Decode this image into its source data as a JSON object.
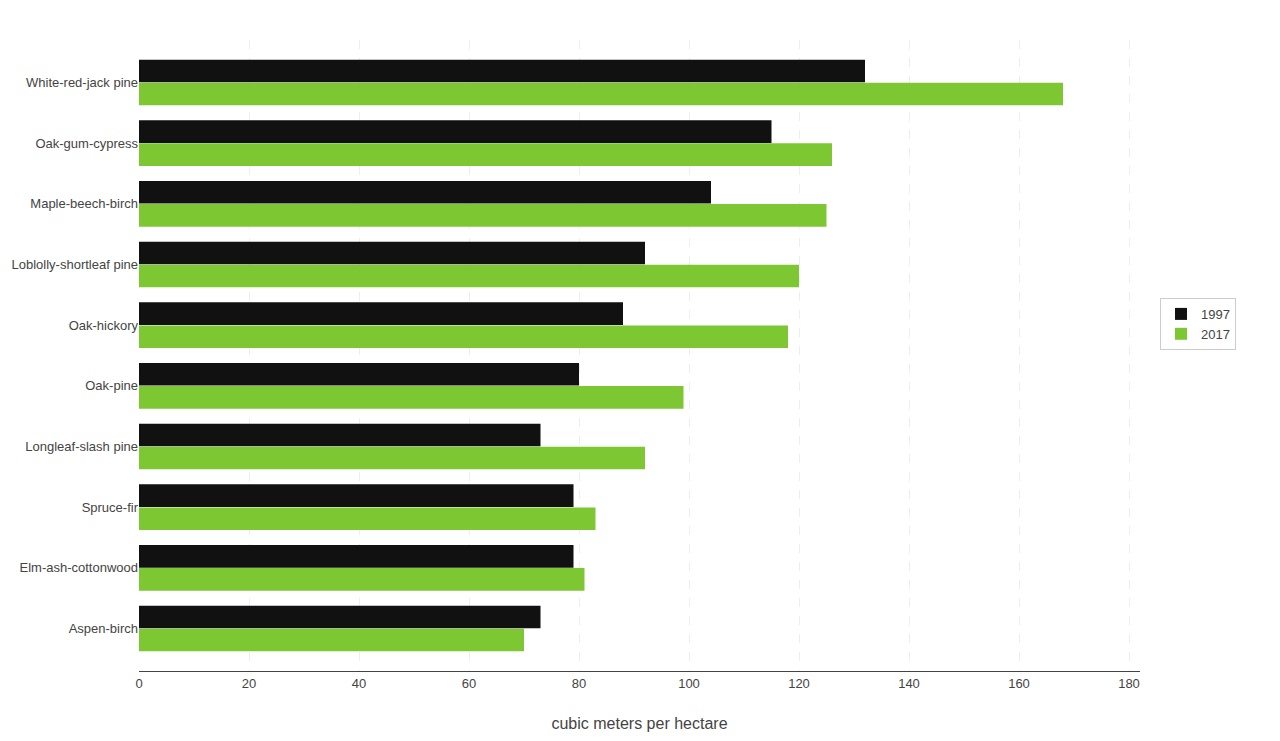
{
  "chart_data": {
    "type": "bar",
    "orientation": "horizontal",
    "categories": [
      "Aspen-birch",
      "Elm-ash-cottonwood",
      "Spruce-fir",
      "Longleaf-slash pine",
      "Oak-pine",
      "Oak-hickory",
      "Loblolly-shortleaf pine",
      "Maple-beech-birch",
      "Oak-gum-cypress",
      "White-red-jack pine"
    ],
    "series": [
      {
        "name": "1997",
        "color": "#111111",
        "values": [
          73,
          79,
          79,
          73,
          80,
          88,
          92,
          104,
          115,
          132
        ]
      },
      {
        "name": "2017",
        "color": "#7dc832",
        "values": [
          70,
          81,
          83,
          92,
          99,
          118,
          120,
          125,
          126,
          168
        ]
      }
    ],
    "xlabel": "cubic meters per hectare",
    "xlim": [
      0,
      182
    ],
    "xticks": [
      0,
      20,
      40,
      60,
      80,
      100,
      120,
      140,
      160,
      180
    ],
    "grid": true,
    "legend": "right"
  }
}
